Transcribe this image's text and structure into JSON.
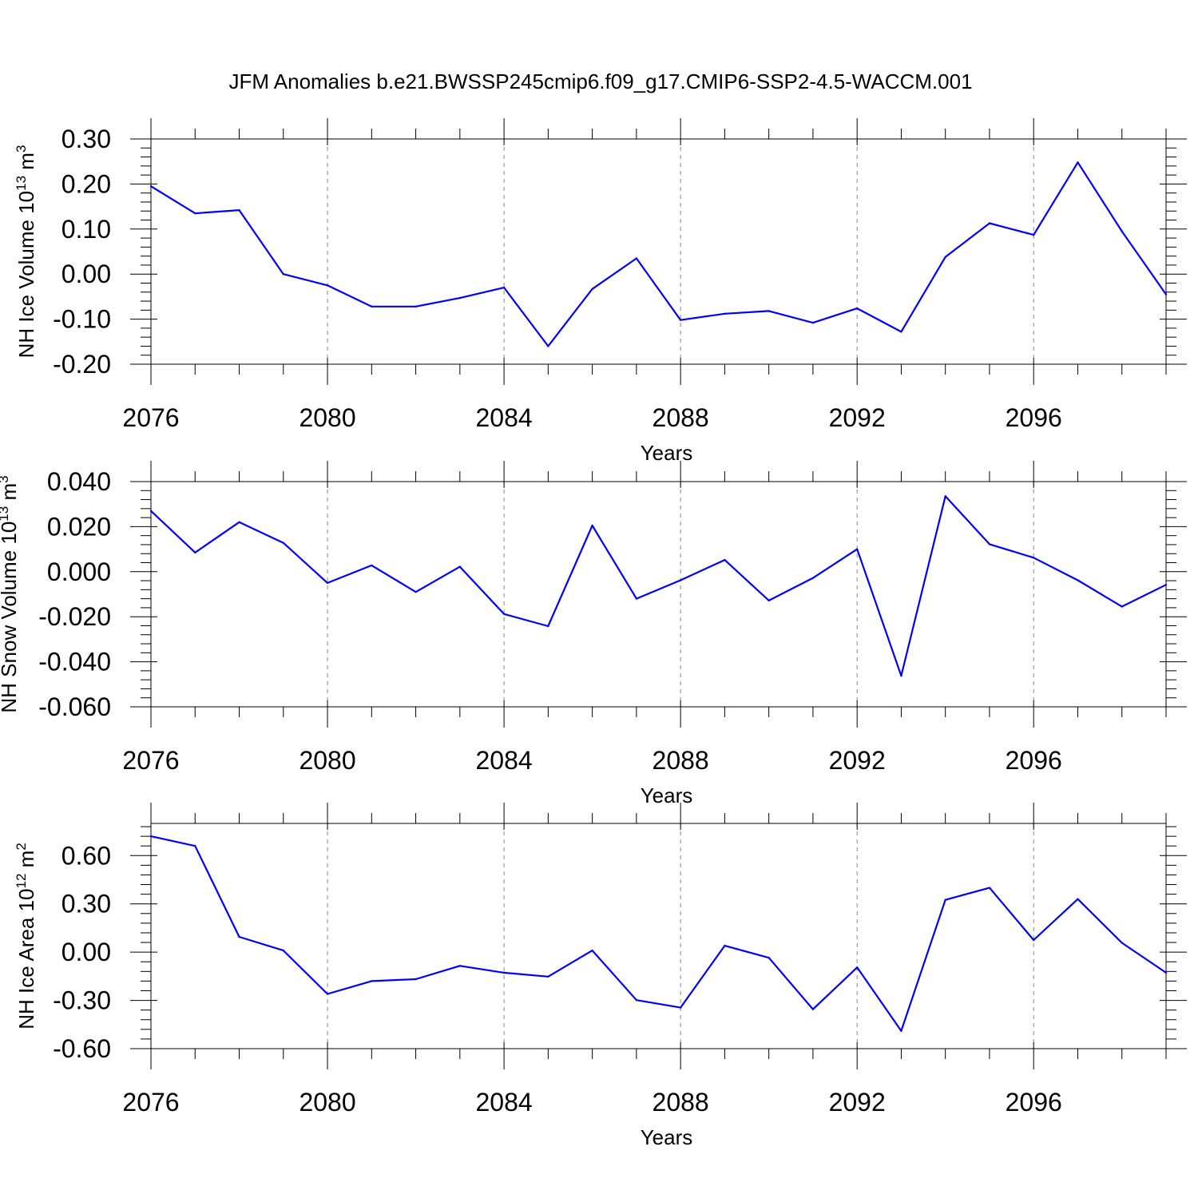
{
  "title": "JFM Anomalies b.e21.BWSSP245cmip6.f09_g17.CMIP6-SSP2-4.5-WACCM.001",
  "colors": {
    "line": "#0000ff",
    "grid": "#888888",
    "axis": "#000000"
  },
  "chart_data": [
    {
      "type": "line",
      "name": "ice-volume",
      "ylabel": "NH Ice Volume 10",
      "ylabel_exp": "13",
      "ylabel_unit": " m",
      "ylabel_unit_exp": "3",
      "xlabel": "Years",
      "xlim": [
        2076,
        2099
      ],
      "ylim": [
        -0.2,
        0.3
      ],
      "yticks": [
        -0.2,
        -0.1,
        0.0,
        0.1,
        0.2,
        0.3
      ],
      "ytick_labels": [
        "-0.20",
        "-0.10",
        "0.00",
        "0.10",
        "0.20",
        "0.30"
      ],
      "xticks": [
        2076,
        2080,
        2084,
        2088,
        2092,
        2096
      ],
      "xtick_labels": [
        "2076",
        "2080",
        "2084",
        "2088",
        "2092",
        "2096"
      ],
      "x": [
        2076,
        2077,
        2078,
        2079,
        2080,
        2081,
        2082,
        2083,
        2084,
        2085,
        2086,
        2087,
        2088,
        2089,
        2090,
        2091,
        2092,
        2093,
        2094,
        2095,
        2096,
        2097,
        2098,
        2099
      ],
      "values": [
        0.195,
        0.135,
        0.142,
        0.0,
        -0.025,
        -0.072,
        -0.072,
        -0.053,
        -0.03,
        -0.16,
        -0.033,
        0.035,
        -0.102,
        -0.088,
        -0.082,
        -0.108,
        -0.076,
        -0.128,
        0.038,
        0.113,
        0.087,
        0.248,
        0.095,
        -0.045
      ]
    },
    {
      "type": "line",
      "name": "snow-volume",
      "ylabel": "NH Snow Volume 10",
      "ylabel_exp": "13",
      "ylabel_unit": " m",
      "ylabel_unit_exp": "3",
      "xlabel": "Years",
      "xlim": [
        2076,
        2099
      ],
      "ylim": [
        -0.06,
        0.04
      ],
      "yticks": [
        -0.06,
        -0.04,
        -0.02,
        0.0,
        0.02,
        0.04
      ],
      "ytick_labels": [
        "-0.060",
        "-0.040",
        "-0.020",
        "0.000",
        "0.020",
        "0.040"
      ],
      "xticks": [
        2076,
        2080,
        2084,
        2088,
        2092,
        2096
      ],
      "xtick_labels": [
        "2076",
        "2080",
        "2084",
        "2088",
        "2092",
        "2096"
      ],
      "x": [
        2076,
        2077,
        2078,
        2079,
        2080,
        2081,
        2082,
        2083,
        2084,
        2085,
        2086,
        2087,
        2088,
        2089,
        2090,
        2091,
        2092,
        2093,
        2094,
        2095,
        2096,
        2097,
        2098,
        2099
      ],
      "values": [
        0.027,
        0.0085,
        0.022,
        0.0128,
        -0.005,
        0.0028,
        -0.009,
        0.0022,
        -0.0188,
        -0.0242,
        0.0205,
        -0.012,
        -0.0038,
        0.0052,
        -0.0128,
        -0.0028,
        0.01,
        -0.0462,
        0.0335,
        0.0122,
        0.0062,
        -0.0038,
        -0.0155,
        -0.0058
      ]
    },
    {
      "type": "line",
      "name": "ice-area",
      "ylabel": "NH Ice Area 10",
      "ylabel_exp": "12",
      "ylabel_unit": " m",
      "ylabel_unit_exp": "2",
      "xlabel": "Years",
      "xlim": [
        2076,
        2099
      ],
      "ylim": [
        -0.6,
        0.8
      ],
      "yticks": [
        -0.6,
        -0.3,
        0.0,
        0.3,
        0.6
      ],
      "ytick_labels": [
        "-0.60",
        "-0.30",
        "0.00",
        "0.30",
        "0.60"
      ],
      "xticks": [
        2076,
        2080,
        2084,
        2088,
        2092,
        2096
      ],
      "xtick_labels": [
        "2076",
        "2080",
        "2084",
        "2088",
        "2092",
        "2096"
      ],
      "x": [
        2076,
        2077,
        2078,
        2079,
        2080,
        2081,
        2082,
        2083,
        2084,
        2085,
        2086,
        2087,
        2088,
        2089,
        2090,
        2091,
        2092,
        2093,
        2094,
        2095,
        2096,
        2097,
        2098,
        2099
      ],
      "values": [
        0.72,
        0.66,
        0.095,
        0.01,
        -0.26,
        -0.18,
        -0.168,
        -0.085,
        -0.128,
        -0.152,
        0.01,
        -0.298,
        -0.345,
        0.04,
        -0.035,
        -0.355,
        -0.095,
        -0.49,
        0.325,
        0.4,
        0.075,
        0.33,
        0.058,
        -0.128
      ]
    }
  ]
}
